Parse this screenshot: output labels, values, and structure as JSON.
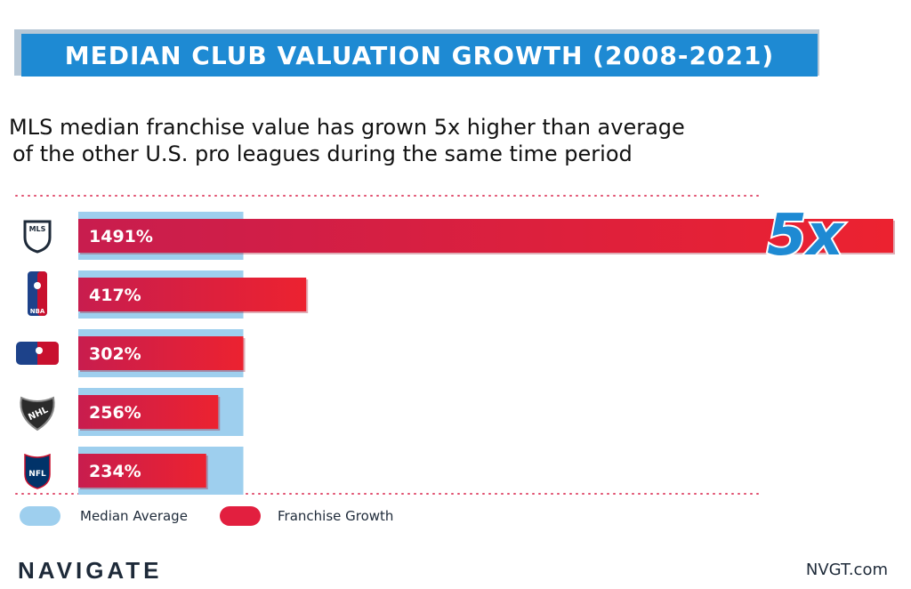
{
  "header": {
    "title": "MEDIAN CLUB VALUATION GROWTH (2008-2021)"
  },
  "subtitle": {
    "line1": "MLS median franchise value has grown 5x higher than average",
    "line2": "of the other U.S. pro leagues during the same time period"
  },
  "colors": {
    "banner": "#1e8ad3",
    "median": "#9ecfee",
    "growth": "#e21f3f",
    "dots": "#e04f6e"
  },
  "chart_data": {
    "type": "bar",
    "orientation": "horizontal",
    "categories": [
      "MLS",
      "NBA",
      "MLB",
      "NHL",
      "NFL"
    ],
    "category_icons": [
      "mls-logo-icon",
      "nba-logo-icon",
      "mlb-logo-icon",
      "nhl-logo-icon",
      "nfl-logo-icon"
    ],
    "series": [
      {
        "name": "Franchise Growth",
        "values": [
          1491,
          417,
          302,
          256,
          234
        ],
        "labels": [
          "1491%",
          "417%",
          "302%",
          "256%",
          "234%"
        ]
      },
      {
        "name": "Median Average",
        "values": [
          302,
          302,
          302,
          302,
          302
        ]
      }
    ],
    "annotation": "5x",
    "xlim": [
      0,
      1491
    ],
    "legend_position": "bottom-left",
    "grid": false
  },
  "legend": {
    "median_label": "Median Average",
    "growth_label": "Franchise Growth"
  },
  "footer": {
    "brand": "NAVIGATE",
    "site": "NVGT.com"
  }
}
